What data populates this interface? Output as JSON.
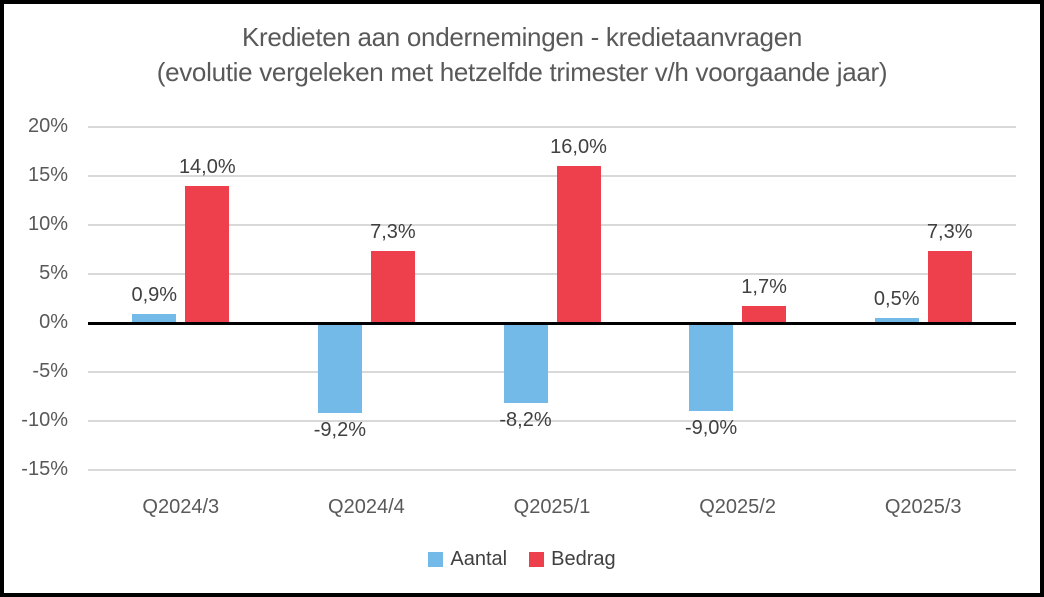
{
  "chart_data": {
    "type": "bar",
    "title": "Kredieten aan ondernemingen - kredietaanvragen",
    "subtitle": "(evolutie vergeleken met hetzelfde trimester v/h voorgaande jaar)",
    "categories": [
      "Q2024/3",
      "Q2024/4",
      "Q2025/1",
      "Q2025/2",
      "Q2025/3"
    ],
    "series": [
      {
        "name": "Aantal",
        "color": "#74BAE8",
        "values": [
          0.9,
          -9.2,
          -8.2,
          -9.0,
          0.5
        ],
        "labels": [
          "0,9%",
          "-9,2%",
          "-8,2%",
          "-9,0%",
          "0,5%"
        ]
      },
      {
        "name": "Bedrag",
        "color": "#EE3F4C",
        "values": [
          14.0,
          7.3,
          16.0,
          1.7,
          7.3
        ],
        "labels": [
          "14,0%",
          "7,3%",
          "16,0%",
          "1,7%",
          "7,3%"
        ]
      }
    ],
    "xlabel": "",
    "ylabel": "",
    "ylim": [
      -15,
      20
    ],
    "y_ticks": [
      20,
      15,
      10,
      5,
      0,
      -5,
      -10,
      -15
    ],
    "y_tick_labels": [
      "20%",
      "15%",
      "10%",
      "5%",
      "0%",
      "-5%",
      "-10%",
      "-15%"
    ],
    "grid": true,
    "legend_position": "bottom",
    "colors": {
      "grid": "#d9d9d9",
      "zero_axis": "#000000",
      "title_text": "#595959",
      "axis_text": "#595959",
      "data_label_text": "#404040",
      "frame_border": "#000000"
    }
  }
}
